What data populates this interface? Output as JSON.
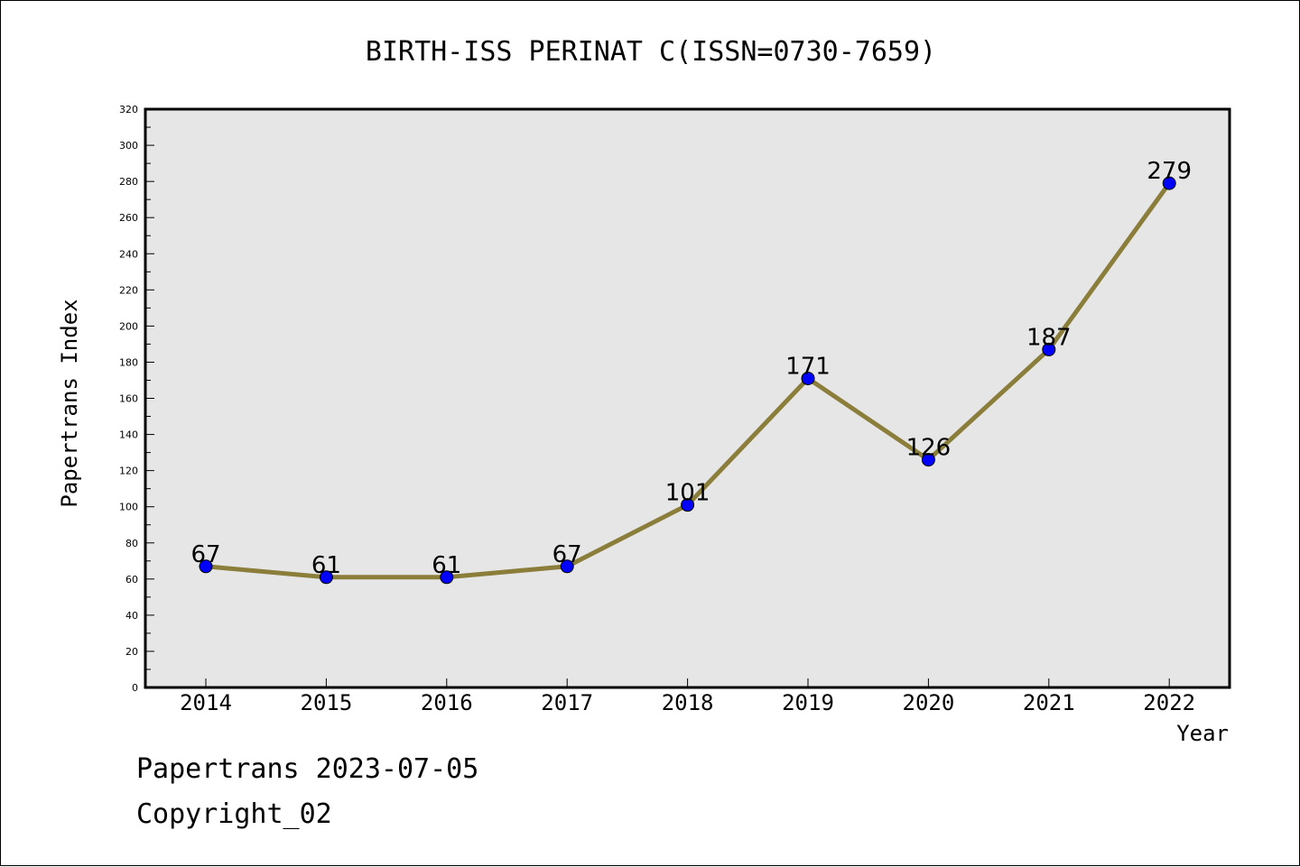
{
  "chart_data": {
    "type": "line",
    "title": "BIRTH-ISS PERINAT C(ISSN=0730-7659)",
    "xlabel": "Year",
    "ylabel": "Papertrans Index",
    "categories": [
      "2014",
      "2015",
      "2016",
      "2017",
      "2018",
      "2019",
      "2020",
      "2021",
      "2022"
    ],
    "series": [
      {
        "values": [
          67,
          61,
          61,
          67,
          101,
          171,
          126,
          187,
          279
        ]
      }
    ],
    "ylim": [
      0,
      320
    ],
    "ytick_step": 20,
    "grid": false,
    "data_labels": true,
    "line_color": "#8b7d3a",
    "marker_color": "#0000ff",
    "plot_background": "#e6e6e6"
  },
  "footer": {
    "line1": "Papertrans 2023-07-05",
    "line2": "Copyright_02"
  }
}
